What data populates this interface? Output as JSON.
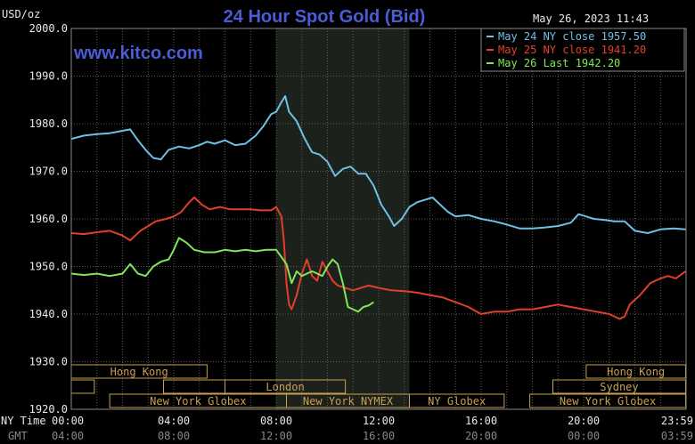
{
  "header": {
    "units": "USD/oz",
    "title": "24 Hour Spot Gold (Bid)",
    "timestamp": "May 26, 2023 11:43",
    "website": "www.kitco.com"
  },
  "colors": {
    "background": "#000000",
    "plot_background": "#000000",
    "highlight_band": "#1c211c",
    "grid": "#5a5a5a",
    "axis_text": "#e8e8e8",
    "title": "#4a5cd6",
    "website": "#4a5cd6",
    "series_may24": "#6ec1e4",
    "series_may25": "#e0402a",
    "series_may26": "#7ee85a",
    "session_box": "#c8a050"
  },
  "axis_labels": {
    "ny_time": "NY Time",
    "gmt": "GMT"
  },
  "chart_data": {
    "type": "line",
    "title": "24 Hour Spot Gold (Bid)",
    "ylabel": "USD/oz",
    "ylim": [
      1920,
      2000
    ],
    "y_ticks": [
      "2000.0",
      "1990.0",
      "1980.0",
      "1970.0",
      "1960.0",
      "1950.0",
      "1940.0",
      "1930.0",
      "1920.0"
    ],
    "y_tick_values": [
      2000,
      1990,
      1980,
      1970,
      1960,
      1950,
      1940,
      1930,
      1920
    ],
    "xlim": [
      0,
      24
    ],
    "x_ticks_ny": [
      "00:00",
      "04:00",
      "08:00",
      "12:00",
      "16:00",
      "20:00",
      "23:59"
    ],
    "x_ticks_gmt": [
      "04:00",
      "08:00",
      "12:00",
      "16:00",
      "20:00",
      "00:00",
      "03:59"
    ],
    "x_tick_values": [
      0,
      4,
      8,
      12,
      16,
      20,
      23.98
    ],
    "grid": true,
    "highlight_range": [
      8.0,
      13.2
    ],
    "legend_position": "top-right",
    "series": [
      {
        "name": "May 24 NY close 1957.50",
        "color": "#6ec1e4",
        "points": [
          [
            0,
            1976.8
          ],
          [
            0.5,
            1977.5
          ],
          [
            1,
            1977.8
          ],
          [
            1.5,
            1978.0
          ],
          [
            2,
            1978.5
          ],
          [
            2.3,
            1978.8
          ],
          [
            2.6,
            1976.5
          ],
          [
            2.9,
            1974.5
          ],
          [
            3.2,
            1972.8
          ],
          [
            3.5,
            1972.5
          ],
          [
            3.8,
            1974.5
          ],
          [
            4.2,
            1975.2
          ],
          [
            4.6,
            1974.8
          ],
          [
            5,
            1975.5
          ],
          [
            5.3,
            1976.2
          ],
          [
            5.6,
            1975.8
          ],
          [
            6,
            1976.5
          ],
          [
            6.4,
            1975.5
          ],
          [
            6.8,
            1975.8
          ],
          [
            7.2,
            1977.5
          ],
          [
            7.5,
            1979.5
          ],
          [
            7.8,
            1982.0
          ],
          [
            8.0,
            1982.5
          ],
          [
            8.2,
            1984.5
          ],
          [
            8.35,
            1985.8
          ],
          [
            8.5,
            1982.5
          ],
          [
            8.8,
            1980.5
          ],
          [
            9.1,
            1977.0
          ],
          [
            9.4,
            1974.0
          ],
          [
            9.7,
            1973.5
          ],
          [
            10.0,
            1972.0
          ],
          [
            10.3,
            1969.0
          ],
          [
            10.6,
            1970.5
          ],
          [
            10.9,
            1971.0
          ],
          [
            11.2,
            1969.5
          ],
          [
            11.5,
            1969.5
          ],
          [
            11.8,
            1967.0
          ],
          [
            12.1,
            1963.0
          ],
          [
            12.4,
            1960.5
          ],
          [
            12.6,
            1958.5
          ],
          [
            12.9,
            1960.0
          ],
          [
            13.2,
            1962.5
          ],
          [
            13.5,
            1963.5
          ],
          [
            13.8,
            1964.0
          ],
          [
            14.1,
            1964.5
          ],
          [
            14.4,
            1963.0
          ],
          [
            14.7,
            1961.5
          ],
          [
            15.0,
            1960.5
          ],
          [
            15.5,
            1960.8
          ],
          [
            16.0,
            1960.0
          ],
          [
            16.5,
            1959.5
          ],
          [
            17.0,
            1958.8
          ],
          [
            17.5,
            1958.0
          ],
          [
            18.0,
            1958.0
          ],
          [
            18.5,
            1958.2
          ],
          [
            19.0,
            1958.5
          ],
          [
            19.5,
            1959.2
          ],
          [
            19.8,
            1961.0
          ],
          [
            20.1,
            1960.5
          ],
          [
            20.4,
            1960.0
          ],
          [
            20.8,
            1959.8
          ],
          [
            21.2,
            1959.5
          ],
          [
            21.6,
            1959.5
          ],
          [
            22.0,
            1957.5
          ],
          [
            22.5,
            1957.0
          ],
          [
            23.0,
            1957.8
          ],
          [
            23.5,
            1958.0
          ],
          [
            23.98,
            1957.8
          ]
        ]
      },
      {
        "name": "May 25 NY close 1941.20",
        "color": "#e0402a",
        "points": [
          [
            0,
            1957.0
          ],
          [
            0.5,
            1956.8
          ],
          [
            1,
            1957.2
          ],
          [
            1.5,
            1957.5
          ],
          [
            2.0,
            1956.5
          ],
          [
            2.3,
            1955.5
          ],
          [
            2.7,
            1957.5
          ],
          [
            3.0,
            1958.5
          ],
          [
            3.3,
            1959.5
          ],
          [
            3.7,
            1960.0
          ],
          [
            4.0,
            1960.5
          ],
          [
            4.3,
            1961.5
          ],
          [
            4.6,
            1963.5
          ],
          [
            4.8,
            1964.5
          ],
          [
            5.1,
            1963.0
          ],
          [
            5.4,
            1962.0
          ],
          [
            5.8,
            1962.5
          ],
          [
            6.2,
            1962.0
          ],
          [
            6.6,
            1962.0
          ],
          [
            7.0,
            1962.0
          ],
          [
            7.4,
            1961.8
          ],
          [
            7.8,
            1961.8
          ],
          [
            8.0,
            1962.5
          ],
          [
            8.2,
            1960.5
          ],
          [
            8.3,
            1955.5
          ],
          [
            8.4,
            1946.5
          ],
          [
            8.5,
            1942.0
          ],
          [
            8.6,
            1941.0
          ],
          [
            8.8,
            1944.0
          ],
          [
            9.0,
            1948.5
          ],
          [
            9.2,
            1951.5
          ],
          [
            9.4,
            1948.0
          ],
          [
            9.6,
            1947.0
          ],
          [
            9.8,
            1951.0
          ],
          [
            10.0,
            1949.0
          ],
          [
            10.2,
            1947.0
          ],
          [
            10.4,
            1946.0
          ],
          [
            10.7,
            1945.5
          ],
          [
            11.0,
            1945.0
          ],
          [
            11.3,
            1945.5
          ],
          [
            11.6,
            1946.0
          ],
          [
            12.0,
            1945.5
          ],
          [
            12.5,
            1945.0
          ],
          [
            13.0,
            1944.8
          ],
          [
            13.5,
            1944.5
          ],
          [
            14.0,
            1944.0
          ],
          [
            14.5,
            1943.5
          ],
          [
            15.0,
            1942.5
          ],
          [
            15.5,
            1941.5
          ],
          [
            16.0,
            1940.0
          ],
          [
            16.5,
            1940.5
          ],
          [
            17.0,
            1940.5
          ],
          [
            17.5,
            1941.0
          ],
          [
            18.0,
            1941.0
          ],
          [
            18.5,
            1941.5
          ],
          [
            19.0,
            1942.0
          ],
          [
            19.5,
            1941.5
          ],
          [
            20.0,
            1941.0
          ],
          [
            20.5,
            1940.5
          ],
          [
            21.0,
            1940.0
          ],
          [
            21.4,
            1939.0
          ],
          [
            21.6,
            1939.5
          ],
          [
            21.8,
            1942.0
          ],
          [
            22.2,
            1944.0
          ],
          [
            22.6,
            1946.5
          ],
          [
            23.0,
            1947.5
          ],
          [
            23.3,
            1948.0
          ],
          [
            23.6,
            1947.5
          ],
          [
            23.98,
            1949.0
          ]
        ]
      },
      {
        "name": "May 26 Last 1942.20",
        "color": "#7ee85a",
        "points": [
          [
            0,
            1948.5
          ],
          [
            0.5,
            1948.2
          ],
          [
            1.0,
            1948.5
          ],
          [
            1.5,
            1948.0
          ],
          [
            2.0,
            1948.5
          ],
          [
            2.3,
            1950.5
          ],
          [
            2.6,
            1948.5
          ],
          [
            2.9,
            1948.0
          ],
          [
            3.2,
            1950.0
          ],
          [
            3.5,
            1951.0
          ],
          [
            3.8,
            1951.5
          ],
          [
            4.0,
            1953.5
          ],
          [
            4.2,
            1956.0
          ],
          [
            4.5,
            1955.0
          ],
          [
            4.8,
            1953.5
          ],
          [
            5.2,
            1953.0
          ],
          [
            5.6,
            1953.0
          ],
          [
            6.0,
            1953.5
          ],
          [
            6.4,
            1953.2
          ],
          [
            6.8,
            1953.5
          ],
          [
            7.2,
            1953.2
          ],
          [
            7.6,
            1953.5
          ],
          [
            8.0,
            1953.5
          ],
          [
            8.2,
            1952.0
          ],
          [
            8.4,
            1950.5
          ],
          [
            8.6,
            1946.5
          ],
          [
            8.8,
            1949.0
          ],
          [
            9.0,
            1948.0
          ],
          [
            9.2,
            1948.5
          ],
          [
            9.4,
            1949.0
          ],
          [
            9.6,
            1948.5
          ],
          [
            9.8,
            1948.0
          ],
          [
            10.0,
            1950.0
          ],
          [
            10.2,
            1951.5
          ],
          [
            10.4,
            1950.5
          ],
          [
            10.6,
            1946.5
          ],
          [
            10.8,
            1941.5
          ],
          [
            11.0,
            1941.0
          ],
          [
            11.2,
            1940.5
          ],
          [
            11.4,
            1941.5
          ],
          [
            11.6,
            1941.8
          ],
          [
            11.8,
            1942.5
          ]
        ]
      }
    ]
  },
  "sessions": [
    {
      "label": "Hong Kong",
      "start": 0.0,
      "end": 5.3,
      "row": 0
    },
    {
      "label": "",
      "start": 0.0,
      "end": 0.9,
      "row": 1
    },
    {
      "label": "",
      "start": 3.6,
      "end": 6.0,
      "row": 1
    },
    {
      "label": "London",
      "start": 6.0,
      "end": 10.7,
      "row": 1
    },
    {
      "label": "New York Globex",
      "start": 1.5,
      "end": 8.4,
      "row": 2
    },
    {
      "label": "New York NYMEX",
      "start": 8.4,
      "end": 13.2,
      "row": 2
    },
    {
      "label": "NY Globex",
      "start": 13.2,
      "end": 16.9,
      "row": 2
    },
    {
      "label": "Hong Kong",
      "start": 20.1,
      "end": 23.98,
      "row": 0
    },
    {
      "label": "Sydney",
      "start": 18.8,
      "end": 23.98,
      "row": 1
    },
    {
      "label": "New York Globex",
      "start": 17.9,
      "end": 23.98,
      "row": 2
    }
  ]
}
